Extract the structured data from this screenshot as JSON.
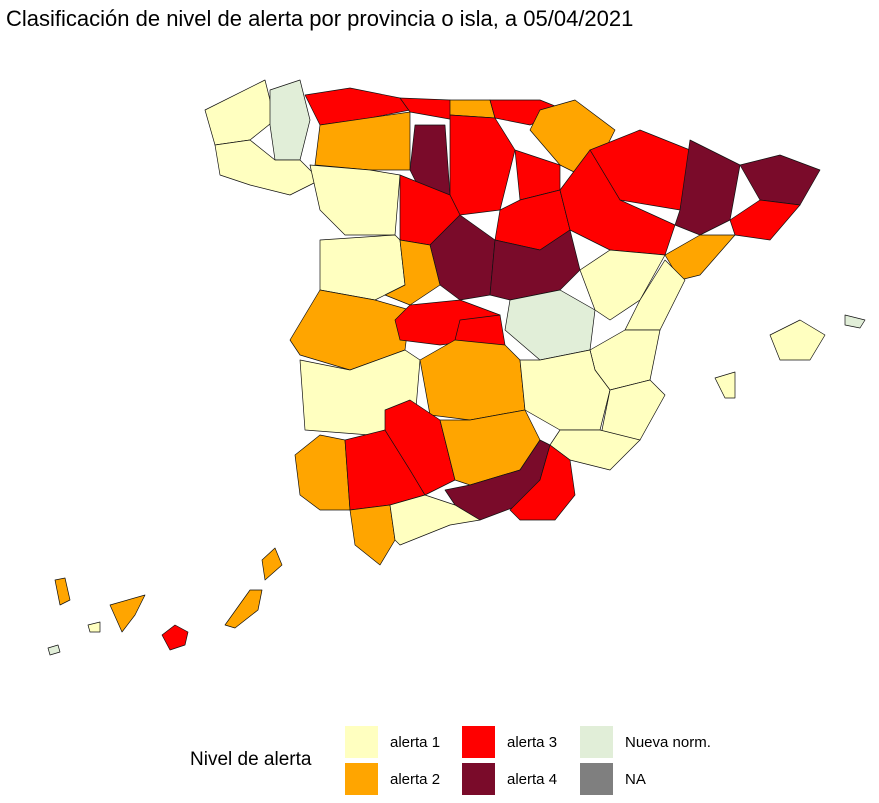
{
  "title": "Clasificación de nivel de alerta por provincia o isla, a 05/04/2021",
  "legend": {
    "title": "Nivel de alerta",
    "items": [
      {
        "label": "alerta 1",
        "color": "#ffffc0"
      },
      {
        "label": "alerta 2",
        "color": "#ffa500"
      },
      {
        "label": "alerta 3",
        "color": "#ff0000"
      },
      {
        "label": "alerta 4",
        "color": "#7a0b2a"
      },
      {
        "label": "Nueva norm.",
        "color": "#e1eed8"
      },
      {
        "label": "NA",
        "color": "#7f7f7f"
      }
    ]
  }
}
